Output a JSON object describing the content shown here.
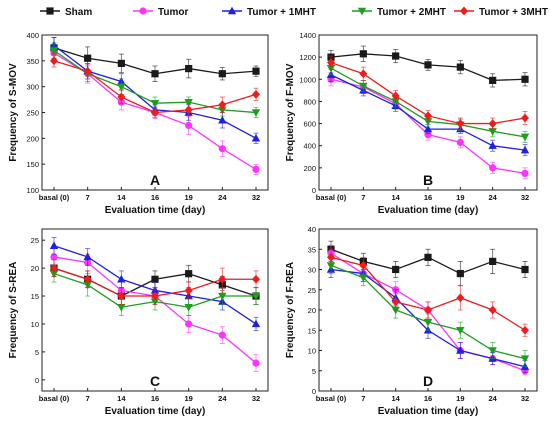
{
  "legend": {
    "entries": [
      {
        "name": "Sham",
        "color": "#1a1a1a",
        "marker": "square"
      },
      {
        "name": "Tumor",
        "color": "#ff33ff",
        "marker": "circle"
      },
      {
        "name": "Tumor + 1MHT",
        "color": "#1f1fe6",
        "marker": "triangle-up"
      },
      {
        "name": "Tumor + 2MHT",
        "color": "#1d9e1d",
        "marker": "triangle-down"
      },
      {
        "name": "Tumor + 3MHT",
        "color": "#ee1c1c",
        "marker": "diamond"
      }
    ]
  },
  "chart_data": [
    {
      "type": "line",
      "panel_letter": "A",
      "xlabel": "Evaluation time (day)",
      "ylabel": "Frequency of S-MOV",
      "categories": [
        "basal (0)",
        "7",
        "14",
        "16",
        "19",
        "24",
        "32"
      ],
      "ylim": [
        100,
        400
      ],
      "yticks": [
        100,
        150,
        200,
        250,
        300,
        350,
        400
      ],
      "grid": false,
      "series": [
        {
          "name": "Sham",
          "values": [
            375,
            355,
            345,
            325,
            335,
            325,
            330
          ],
          "errors": [
            20,
            22,
            18,
            15,
            18,
            12,
            10
          ]
        },
        {
          "name": "Tumor",
          "values": [
            365,
            325,
            270,
            250,
            225,
            180,
            140
          ],
          "errors": [
            15,
            18,
            15,
            12,
            18,
            15,
            10
          ]
        },
        {
          "name": "Tumor + 1MHT",
          "values": [
            380,
            330,
            310,
            255,
            250,
            235,
            200
          ],
          "errors": [
            15,
            15,
            15,
            10,
            15,
            15,
            10
          ]
        },
        {
          "name": "Tumor + 2MHT",
          "values": [
            370,
            325,
            300,
            268,
            270,
            255,
            250
          ],
          "errors": [
            15,
            15,
            15,
            12,
            10,
            12,
            10
          ]
        },
        {
          "name": "Tumor + 3MHT",
          "values": [
            350,
            330,
            280,
            250,
            255,
            265,
            285
          ],
          "errors": [
            12,
            15,
            12,
            10,
            12,
            15,
            12
          ]
        }
      ]
    },
    {
      "type": "line",
      "panel_letter": "B",
      "xlabel": "Evaluation time (day)",
      "ylabel": "Frequency of F-MOV",
      "categories": [
        "basal (0)",
        "7",
        "14",
        "16",
        "19",
        "24",
        "32"
      ],
      "ylim": [
        0,
        1400
      ],
      "yticks": [
        0,
        200,
        400,
        600,
        800,
        1000,
        1200,
        1400
      ],
      "grid": false,
      "series": [
        {
          "name": "Sham",
          "values": [
            1200,
            1230,
            1210,
            1130,
            1110,
            990,
            1000
          ],
          "errors": [
            60,
            70,
            60,
            50,
            60,
            60,
            60
          ]
        },
        {
          "name": "Tumor",
          "values": [
            1000,
            930,
            780,
            500,
            430,
            200,
            150
          ],
          "errors": [
            60,
            60,
            50,
            50,
            50,
            50,
            50
          ]
        },
        {
          "name": "Tumor + 1MHT",
          "values": [
            1040,
            900,
            760,
            550,
            550,
            400,
            360
          ],
          "errors": [
            60,
            50,
            50,
            40,
            40,
            50,
            50
          ]
        },
        {
          "name": "Tumor + 2MHT",
          "values": [
            1100,
            940,
            800,
            620,
            590,
            530,
            480
          ],
          "errors": [
            60,
            50,
            50,
            50,
            50,
            50,
            50
          ]
        },
        {
          "name": "Tumor + 3MHT",
          "values": [
            1150,
            1050,
            850,
            670,
            600,
            600,
            650
          ],
          "errors": [
            60,
            60,
            50,
            50,
            50,
            50,
            60
          ]
        }
      ]
    },
    {
      "type": "line",
      "panel_letter": "C",
      "xlabel": "Evaluation time (day)",
      "ylabel": "Frequency of S-REA",
      "categories": [
        "basal (0)",
        "7",
        "14",
        "16",
        "19",
        "24",
        "32"
      ],
      "ylim": [
        -2,
        27
      ],
      "yticks": [
        0,
        5,
        10,
        15,
        20,
        25
      ],
      "grid": false,
      "series": [
        {
          "name": "Sham",
          "values": [
            20,
            18,
            15,
            18,
            19,
            17,
            15
          ],
          "errors": [
            1.5,
            1.5,
            1.5,
            1.5,
            1.5,
            1.5,
            1.5
          ]
        },
        {
          "name": "Tumor",
          "values": [
            22,
            21,
            16,
            15,
            10,
            8,
            3
          ],
          "errors": [
            1.5,
            1.5,
            1.5,
            1.5,
            1.5,
            1.5,
            1.5
          ]
        },
        {
          "name": "Tumor + 1MHT",
          "values": [
            24,
            22,
            18,
            16,
            15,
            14,
            10
          ],
          "errors": [
            1.5,
            1.5,
            1.5,
            1.5,
            1.5,
            1.5,
            1.2
          ]
        },
        {
          "name": "Tumor + 2MHT",
          "values": [
            19,
            17,
            13,
            14,
            13,
            15,
            15
          ],
          "errors": [
            1.5,
            2,
            1.5,
            1.5,
            1.5,
            1.5,
            1.5
          ]
        },
        {
          "name": "Tumor + 3MHT",
          "values": [
            20,
            18,
            15,
            15,
            16,
            18,
            18
          ],
          "errors": [
            1.5,
            1.5,
            1.5,
            1.5,
            1.5,
            2,
            1.5
          ]
        }
      ]
    },
    {
      "type": "line",
      "panel_letter": "D",
      "xlabel": "Evaluation time (day)",
      "ylabel": "Frequency of F-REA",
      "categories": [
        "basal (0)",
        "7",
        "14",
        "16",
        "19",
        "24",
        "32"
      ],
      "ylim": [
        0,
        40
      ],
      "yticks": [
        0,
        5,
        10,
        15,
        20,
        25,
        30,
        35,
        40
      ],
      "grid": false,
      "series": [
        {
          "name": "Sham",
          "values": [
            35,
            32,
            30,
            33,
            29,
            32,
            30
          ],
          "errors": [
            2,
            2,
            2,
            2,
            3,
            3,
            2
          ]
        },
        {
          "name": "Tumor",
          "values": [
            34,
            29,
            25,
            20,
            10,
            8,
            5
          ],
          "errors": [
            2,
            2,
            2,
            2,
            2,
            1.5,
            1
          ]
        },
        {
          "name": "Tumor + 1MHT",
          "values": [
            30,
            29,
            23,
            15,
            10,
            8,
            6
          ],
          "errors": [
            2,
            2,
            2,
            2,
            2,
            1.5,
            1.5
          ]
        },
        {
          "name": "Tumor + 2MHT",
          "values": [
            31,
            28,
            20,
            17,
            15,
            10,
            8
          ],
          "errors": [
            2,
            2,
            2,
            2,
            2,
            2,
            2
          ]
        },
        {
          "name": "Tumor + 3MHT",
          "values": [
            33,
            31,
            22,
            20,
            23,
            20,
            15
          ],
          "errors": [
            2,
            2,
            2,
            2,
            3,
            2,
            1.5
          ]
        }
      ]
    }
  ]
}
